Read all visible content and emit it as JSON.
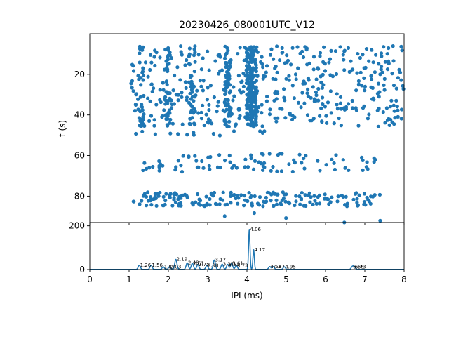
{
  "chart_data": [
    {
      "type": "scatter",
      "title": "20230426_080001UTC_V12",
      "xlabel": "",
      "ylabel": "t (s)",
      "xlim": [
        0,
        8
      ],
      "ylim": [
        93,
        0
      ],
      "y_inverted": true,
      "yticks": [
        20,
        40,
        60,
        80
      ],
      "ytick_labels": [
        "20",
        "40",
        "60",
        "80"
      ],
      "x_ticklabels_shown": false,
      "marker_color": "#1f77b4",
      "marker": "filled-circle",
      "grid": false,
      "bands": [
        {
          "x_range": [
            1.05,
            8.0
          ],
          "t_range": [
            6,
            46
          ],
          "count": 820,
          "dense_columns": [
            {
              "x": 4.06,
              "weight": 3.0
            },
            {
              "x": 4.17,
              "weight": 2.5
            },
            {
              "x": 3.5,
              "weight": 1.4
            },
            {
              "x": 2.6,
              "weight": 1.3
            },
            {
              "x": 2.0,
              "weight": 1.1
            },
            {
              "x": 1.3,
              "weight": 0.9
            }
          ]
        },
        {
          "x_range": [
            1.1,
            4.6
          ],
          "t_range": [
            48,
            51
          ],
          "count": 14
        },
        {
          "x_range": [
            1.2,
            7.4
          ],
          "t_range": [
            59,
            68
          ],
          "count": 90
        },
        {
          "x_range": [
            1.1,
            7.4
          ],
          "t_range": [
            78,
            85
          ],
          "count": 190
        },
        {
          "x_range": [
            2.7,
            7.4
          ],
          "t_range": [
            88,
            93
          ],
          "count": 5
        }
      ]
    },
    {
      "type": "line",
      "xlabel": "IPI (ms)",
      "ylabel": "",
      "xlim": [
        0,
        8
      ],
      "ylim": [
        0,
        215
      ],
      "xticks": [
        0,
        1,
        2,
        3,
        4,
        5,
        6,
        7,
        8
      ],
      "xtick_labels": [
        "0",
        "1",
        "2",
        "3",
        "4",
        "5",
        "6",
        "7",
        "8"
      ],
      "yticks": [
        0,
        200
      ],
      "ytick_labels": [
        "0",
        "200"
      ],
      "line_color": "#1f77b4",
      "grid": false,
      "peaks": [
        {
          "x": 1.26,
          "y": 19,
          "label": "1.26"
        },
        {
          "x": 1.56,
          "y": 19,
          "label": "1.56"
        },
        {
          "x": 1.87,
          "y": 12,
          "label": "1.87"
        },
        {
          "x": 2.03,
          "y": 12,
          "label": "2.03"
        },
        {
          "x": 2.19,
          "y": 46,
          "label": "2.19"
        },
        {
          "x": 2.48,
          "y": 30,
          "label": "2.48"
        },
        {
          "x": 2.61,
          "y": 28,
          "label": "2.61"
        },
        {
          "x": 2.75,
          "y": 22,
          "label": "2.75"
        },
        {
          "x": 2.98,
          "y": 18,
          "label": "2.98"
        },
        {
          "x": 3.17,
          "y": 43,
          "label": "3.17"
        },
        {
          "x": 3.37,
          "y": 24,
          "label": "3.37"
        },
        {
          "x": 3.51,
          "y": 23,
          "label": "3.51"
        },
        {
          "x": 3.61,
          "y": 27,
          "label": "3.61"
        },
        {
          "x": 3.73,
          "y": 18,
          "label": "3.73"
        },
        {
          "x": 4.06,
          "y": 183,
          "label": "4.06"
        },
        {
          "x": 4.17,
          "y": 90,
          "label": "4.17"
        },
        {
          "x": 4.58,
          "y": 13,
          "label": "4.58"
        },
        {
          "x": 4.67,
          "y": 13,
          "label": "4.67"
        },
        {
          "x": 4.95,
          "y": 12,
          "label": "4.95"
        },
        {
          "x": 6.68,
          "y": 12,
          "label": "6.68"
        },
        {
          "x": 6.73,
          "y": 12,
          "label": "6.73"
        }
      ]
    }
  ]
}
